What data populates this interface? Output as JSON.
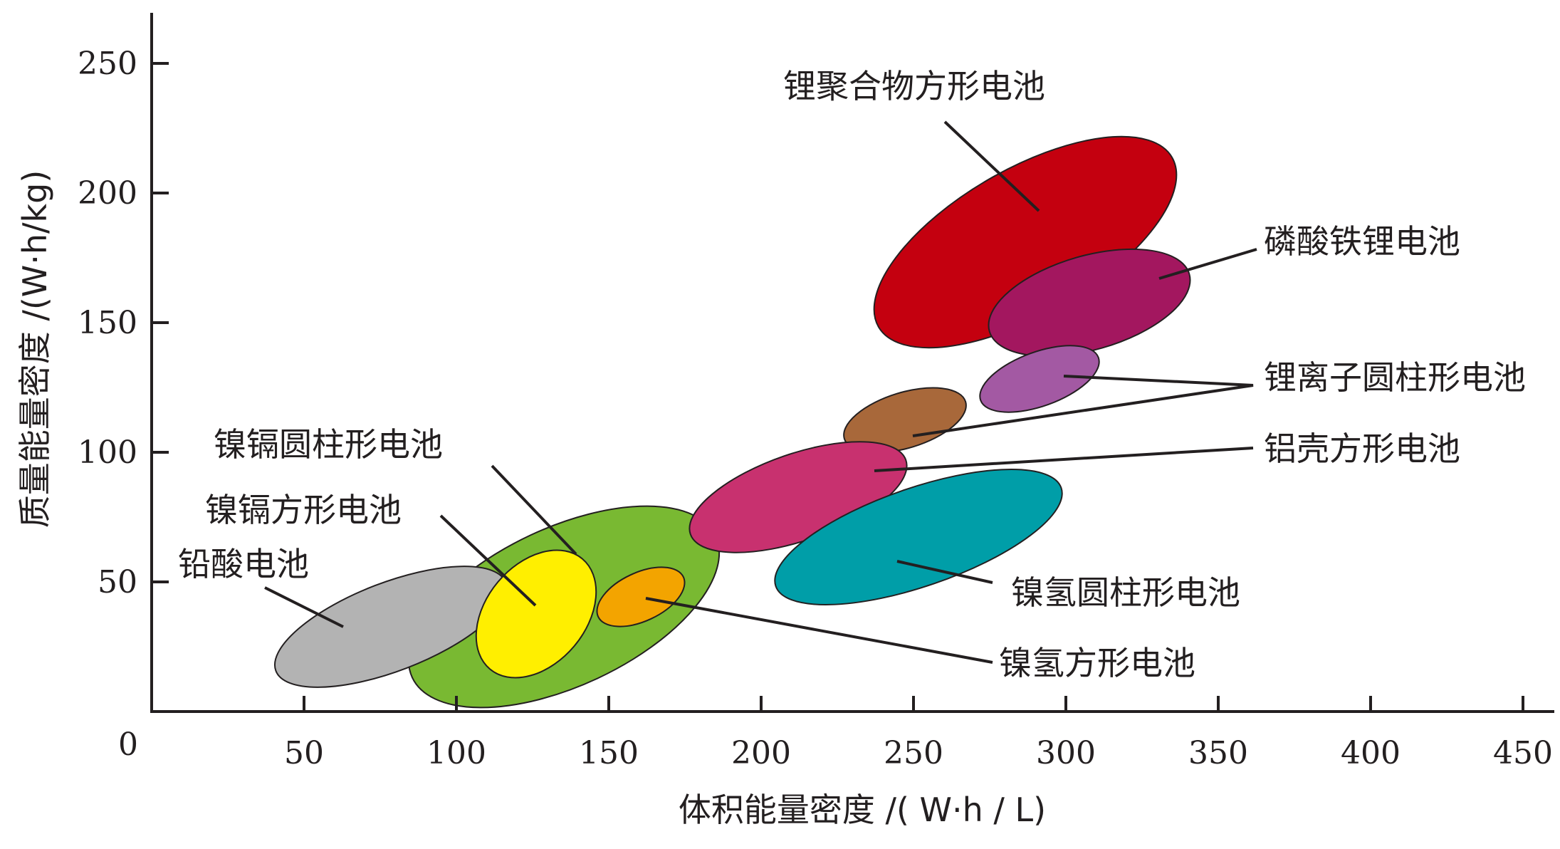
{
  "chart_data": {
    "type": "scatter",
    "title": "",
    "xlabel": "体积能量密度 /( W·h / L)",
    "ylabel": "质量能量密度 /(W·h/kg)",
    "xlim": [
      0,
      460
    ],
    "ylim": [
      0,
      260
    ],
    "origin_label": "0",
    "x_ticks": [
      50,
      100,
      150,
      200,
      250,
      300,
      350,
      400,
      450
    ],
    "y_ticks": [
      50,
      100,
      150,
      200,
      250
    ],
    "grid": false,
    "regions": [
      {
        "name": "锂聚合物方形电池",
        "color": "#c4000f",
        "x_range": [
          235,
          345
        ],
        "y_range": [
          138,
          218
        ],
        "center": [
          290,
          177
        ]
      },
      {
        "name": "磷酸铁锂电池",
        "color": "#a3175f",
        "x_range": [
          273,
          342
        ],
        "y_range": [
          135,
          173
        ],
        "center": [
          308,
          154
        ]
      },
      {
        "name": "锂离子圆柱形电池",
        "color": "#a359a3",
        "x_range": [
          272,
          313
        ],
        "y_range": [
          113,
          134
        ],
        "center": [
          293,
          123
        ]
      },
      {
        "name": "铝壳方形电池",
        "color": "#a8683a",
        "x_range": [
          226,
          269
        ],
        "y_range": [
          96,
          120
        ],
        "center": [
          247,
          108
        ]
      },
      {
        "name": "镍镉圆柱形电池",
        "color": "#79b932",
        "x_range": [
          82,
          175
        ],
        "y_range": [
          7,
          68
        ],
        "center": [
          128,
          37
        ]
      },
      {
        "name": "镍镉方形电池",
        "color": "#ffef00",
        "x_range": [
          110,
          147
        ],
        "y_range": [
          13,
          51
        ],
        "center": [
          128,
          32
        ]
      },
      {
        "name": "铅酸电池",
        "color": "#b3b3b3",
        "x_range": [
          38,
          110
        ],
        "y_range": [
          9,
          52
        ],
        "center": [
          74,
          30
        ]
      },
      {
        "name": "镍氢方形电池",
        "color": "#f3a400",
        "x_range": [
          147,
          180
        ],
        "y_range": [
          30,
          51
        ],
        "center": [
          163,
          40
        ]
      },
      {
        "name": "镍氢圆柱形电池",
        "color": "#009ea8",
        "x_range": [
          204,
          296
        ],
        "y_range": [
          39,
          92
        ],
        "center": [
          250,
          65
        ]
      },
      {
        "name": "(unlabeled magenta region)",
        "color": "#c8316f",
        "x_range": [
          175,
          247
        ],
        "y_range": [
          60,
          97
        ],
        "center": [
          211,
          78
        ]
      }
    ]
  },
  "labels": {
    "li_polymer": "锂聚合物方形电池",
    "lfp": "磷酸铁锂电池",
    "li_cyl": "锂离子圆柱形电池",
    "al_square": "铝壳方形电池",
    "nicd_cyl": "镍镉圆柱形电池",
    "nicd_square": "镍镉方形电池",
    "lead_acid": "铅酸电池",
    "nimh_cyl": "镍氢圆柱形电池",
    "nimh_square": "镍氢方形电池"
  }
}
